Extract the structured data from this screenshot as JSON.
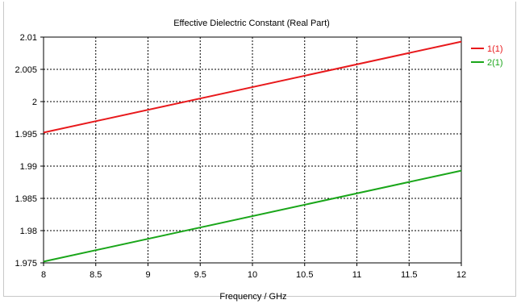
{
  "chart_data": {
    "type": "line",
    "title": "Effective Dielectric Constant (Real Part)",
    "xlabel": "Frequency / GHz",
    "ylabel": "",
    "xlim": [
      8,
      12
    ],
    "ylim": [
      1.975,
      2.01
    ],
    "grid": true,
    "legend_position": "right",
    "x_ticks": [
      "8",
      "8.5",
      "9",
      "9.5",
      "10",
      "10.5",
      "11",
      "11.5",
      "12"
    ],
    "y_ticks": [
      "2.01",
      "2.005",
      "2",
      "1.995",
      "1.99",
      "1.985",
      "1.98",
      "1.975"
    ],
    "series": [
      {
        "name": "1(1)",
        "color": "#e8191c",
        "x": [
          8,
          12
        ],
        "y": [
          1.9952,
          2.0093
        ]
      },
      {
        "name": "2(1)",
        "color": "#1aa61a",
        "x": [
          8,
          12
        ],
        "y": [
          1.9752,
          1.9893
        ]
      }
    ]
  }
}
